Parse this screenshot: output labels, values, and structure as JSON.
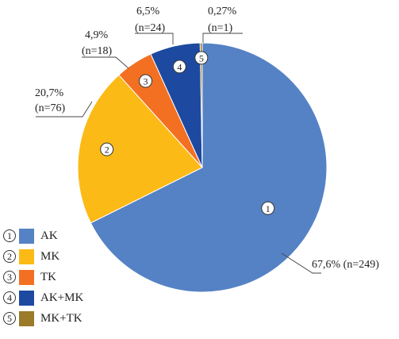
{
  "chart_data": {
    "type": "pie",
    "slices": [
      {
        "id": "1",
        "name": "AK",
        "value": 249,
        "percent_label": "67,6% (n=249)",
        "percent": "",
        "n": "",
        "color": "#5582c5"
      },
      {
        "id": "2",
        "name": "MK",
        "value": 76,
        "percent": "20,7%",
        "n": "(n=76)",
        "color": "#fcba17"
      },
      {
        "id": "3",
        "name": "TK",
        "value": 18,
        "percent": "4,9%",
        "n": "(n=18)",
        "color": "#f37022"
      },
      {
        "id": "4",
        "name": "AK+MK",
        "value": 24,
        "percent": "6,5%",
        "n": "(n=24)",
        "color": "#1d4aa0"
      },
      {
        "id": "5",
        "name": "MK+TK",
        "value": 1,
        "percent": "0,27%",
        "n": "(n=1)",
        "color": "#9b7a2a"
      }
    ],
    "legend_position": "bottom-left"
  }
}
